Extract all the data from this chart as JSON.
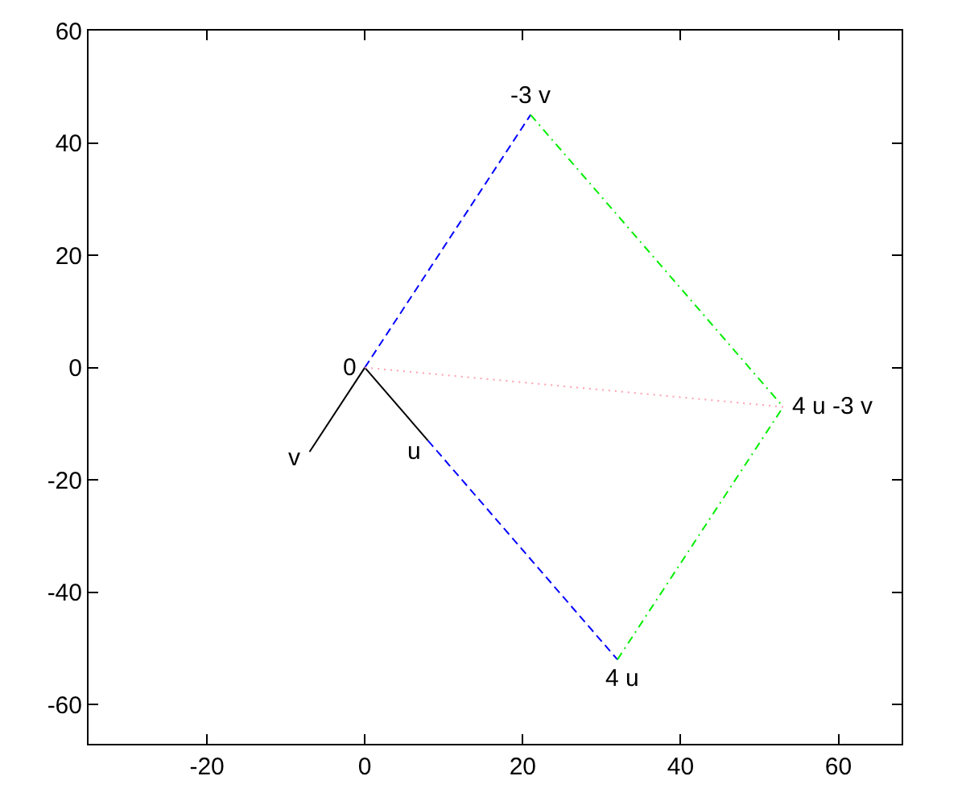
{
  "chart_data": {
    "type": "line",
    "xlim": [
      -35,
      68
    ],
    "ylim": [
      -67,
      60
    ],
    "xticks": [
      -20,
      0,
      20,
      40,
      60
    ],
    "yticks": [
      -60,
      -40,
      -20,
      0,
      20,
      40,
      60
    ],
    "grid": false,
    "marker": "none",
    "series": [
      {
        "color": "#000000",
        "line_style": "solid",
        "x": [
          0,
          8
        ],
        "values": [
          0,
          -13
        ]
      },
      {
        "color": "#000000",
        "line_style": "solid",
        "x": [
          0,
          -7
        ],
        "values": [
          0,
          -15
        ]
      },
      {
        "color": "#0000ff",
        "line_style": "dashed",
        "x": [
          0,
          21
        ],
        "values": [
          0,
          45
        ]
      },
      {
        "color": "#0000ff",
        "line_style": "dashed",
        "x": [
          8,
          32
        ],
        "values": [
          -13,
          -52
        ]
      },
      {
        "color": "#00ee00",
        "line_style": "dashdot",
        "x": [
          21,
          53
        ],
        "values": [
          45,
          -7
        ]
      },
      {
        "color": "#00ee00",
        "line_style": "dashdot",
        "x": [
          32,
          53
        ],
        "values": [
          -52,
          -7
        ]
      },
      {
        "color": "#ffa0b0",
        "line_style": "dotted",
        "x": [
          0,
          53
        ],
        "values": [
          0,
          -7
        ]
      }
    ],
    "annotations": [
      {
        "text": "0",
        "x": 0,
        "y": 0
      },
      {
        "text": "u",
        "x": 8,
        "y": -13
      },
      {
        "text": "v",
        "x": -7,
        "y": -15
      },
      {
        "text": "-3 v",
        "x": 21,
        "y": 45
      },
      {
        "text": "4 u",
        "x": 32,
        "y": -52
      },
      {
        "text": "4 u -3 v",
        "x": 53,
        "y": -7
      }
    ]
  }
}
